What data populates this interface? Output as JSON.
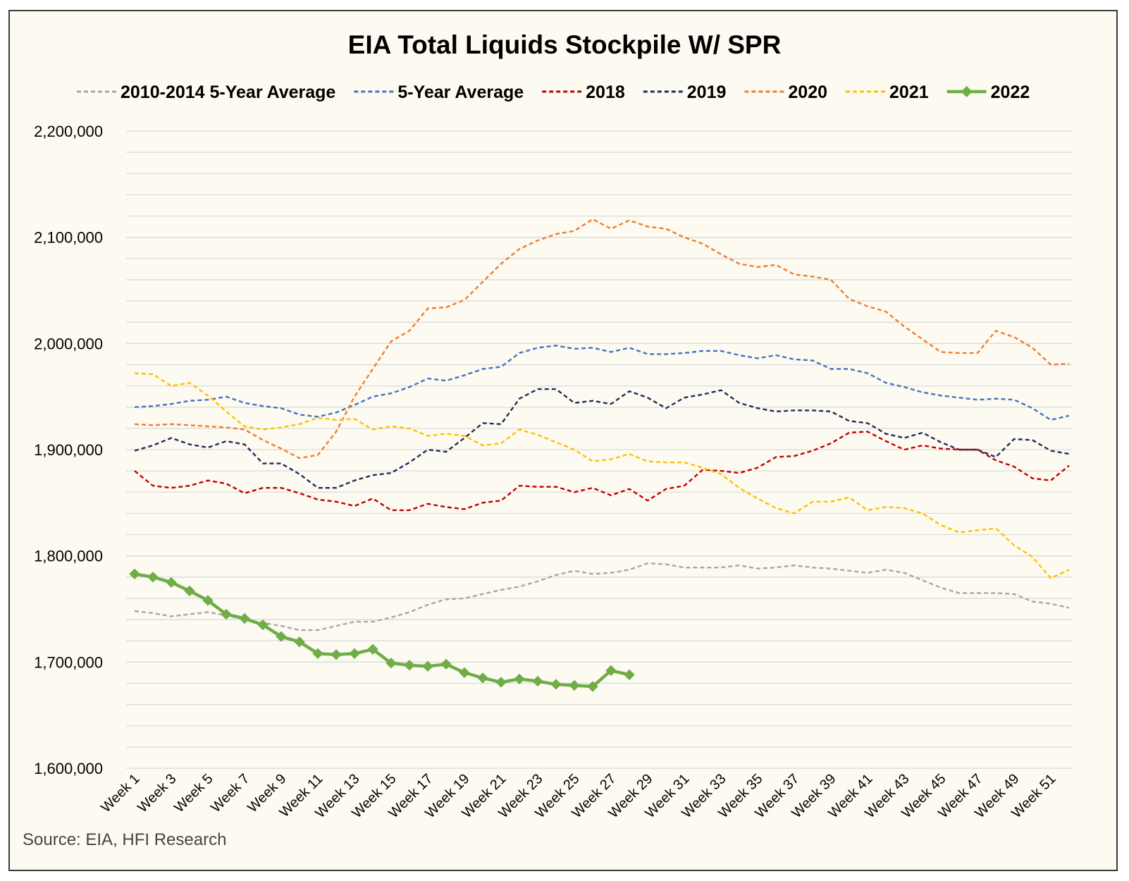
{
  "chart_data": {
    "type": "line",
    "title": "EIA Total Liquids Stockpile W/ SPR",
    "source": "Source: EIA, HFI Research",
    "xlabel": "",
    "ylabel": "",
    "ylim": [
      1600000,
      2200000
    ],
    "y_ticks": [
      "1,600,000",
      "1,700,000",
      "1,800,000",
      "1,900,000",
      "2,000,000",
      "2,100,000",
      "2,200,000"
    ],
    "y_tick_values": [
      1600000,
      1700000,
      1800000,
      1900000,
      2000000,
      2100000,
      2200000
    ],
    "x_tick_labels": [
      "Week 1",
      "Week 3",
      "Week 5",
      "Week 7",
      "Week 9",
      "Week 11",
      "Week 13",
      "Week 15",
      "Week 17",
      "Week 19",
      "Week 21",
      "Week 23",
      "Week 25",
      "Week 27",
      "Week 29",
      "Week 31",
      "Week 33",
      "Week 35",
      "Week 37",
      "Week 39",
      "Week 41",
      "Week 43",
      "Week 45",
      "Week 47",
      "Week 49",
      "Week 51"
    ],
    "x_tick_weeks": [
      1,
      3,
      5,
      7,
      9,
      11,
      13,
      15,
      17,
      19,
      21,
      23,
      25,
      27,
      29,
      31,
      33,
      35,
      37,
      39,
      41,
      43,
      45,
      47,
      49,
      51
    ],
    "grid": true,
    "legend_position": "top",
    "series": [
      {
        "name": "2010-2014 5-Year Average",
        "color": "#a6a6a6",
        "dashed": true,
        "values": [
          1748000,
          1746000,
          1743000,
          1745000,
          1747000,
          1744000,
          1740000,
          1737000,
          1734000,
          1730000,
          1730000,
          1734000,
          1738000,
          1738000,
          1742000,
          1747000,
          1754000,
          1759000,
          1760000,
          1764000,
          1768000,
          1771000,
          1776000,
          1782000,
          1786000,
          1783000,
          1784000,
          1787000,
          1793000,
          1792000,
          1789000,
          1789000,
          1789000,
          1791000,
          1788000,
          1789000,
          1791000,
          1789000,
          1788000,
          1786000,
          1784000,
          1787000,
          1784000,
          1777000,
          1770000,
          1765000,
          1765000,
          1765000,
          1764000,
          1757000,
          1755000,
          1751000
        ]
      },
      {
        "name": "5-Year Average",
        "color": "#4472c4",
        "dashed": true,
        "values": [
          1940000,
          1941000,
          1943000,
          1946000,
          1947000,
          1950000,
          1944000,
          1941000,
          1939000,
          1933000,
          1931000,
          1935000,
          1942000,
          1950000,
          1953000,
          1959000,
          1967000,
          1965000,
          1970000,
          1976000,
          1978000,
          1991000,
          1996000,
          1998000,
          1995000,
          1996000,
          1992000,
          1996000,
          1990000,
          1990000,
          1991000,
          1993000,
          1993000,
          1989000,
          1986000,
          1989000,
          1985000,
          1984000,
          1976000,
          1976000,
          1972000,
          1963000,
          1959000,
          1954000,
          1951000,
          1949000,
          1947000,
          1948000,
          1947000,
          1939000,
          1928000,
          1932000
        ]
      },
      {
        "name": "2018",
        "color": "#c00000",
        "dashed": true,
        "values": [
          1880000,
          1866000,
          1864000,
          1866000,
          1871000,
          1868000,
          1859000,
          1864000,
          1864000,
          1859000,
          1853000,
          1851000,
          1847000,
          1854000,
          1843000,
          1843000,
          1849000,
          1846000,
          1844000,
          1850000,
          1852000,
          1866000,
          1865000,
          1865000,
          1860000,
          1864000,
          1857000,
          1863000,
          1852000,
          1863000,
          1866000,
          1881000,
          1880000,
          1878000,
          1883000,
          1893000,
          1894000,
          1899000,
          1906000,
          1916000,
          1917000,
          1908000,
          1900000,
          1904000,
          1901000,
          1900000,
          1900000,
          1890000,
          1884000,
          1873000,
          1871000,
          1885000
        ]
      },
      {
        "name": "2019",
        "color": "#1f2d5c",
        "dashed": true,
        "values": [
          1899000,
          1904000,
          1911000,
          1905000,
          1902000,
          1908000,
          1905000,
          1887000,
          1887000,
          1877000,
          1864000,
          1864000,
          1871000,
          1876000,
          1878000,
          1888000,
          1900000,
          1898000,
          1911000,
          1925000,
          1924000,
          1948000,
          1957000,
          1957000,
          1944000,
          1946000,
          1943000,
          1955000,
          1949000,
          1939000,
          1949000,
          1952000,
          1956000,
          1944000,
          1939000,
          1936000,
          1937000,
          1937000,
          1936000,
          1927000,
          1925000,
          1915000,
          1911000,
          1916000,
          1907000,
          1900000,
          1900000,
          1893000,
          1910000,
          1909000,
          1899000,
          1896000
        ]
      },
      {
        "name": "2020",
        "color": "#ed7d31",
        "dashed": true,
        "values": [
          1924000,
          1923000,
          1924000,
          1923000,
          1922000,
          1921000,
          1919000,
          1909000,
          1901000,
          1892000,
          1895000,
          1917000,
          1950000,
          1976000,
          2002000,
          2012000,
          2033000,
          2034000,
          2041000,
          2058000,
          2075000,
          2089000,
          2097000,
          2103000,
          2106000,
          2117000,
          2108000,
          2116000,
          2110000,
          2108000,
          2100000,
          2094000,
          2084000,
          2075000,
          2072000,
          2074000,
          2065000,
          2063000,
          2060000,
          2042000,
          2035000,
          2030000,
          2016000,
          2004000,
          1992000,
          1991000,
          1991000,
          2012000,
          2006000,
          1996000,
          1980000,
          1981000
        ]
      },
      {
        "name": "2021",
        "color": "#ffc000",
        "dashed": true,
        "values": [
          1972000,
          1971000,
          1960000,
          1963000,
          1951000,
          1936000,
          1922000,
          1919000,
          1921000,
          1924000,
          1930000,
          1928000,
          1929000,
          1919000,
          1922000,
          1920000,
          1913000,
          1915000,
          1913000,
          1904000,
          1906000,
          1919000,
          1914000,
          1907000,
          1900000,
          1889000,
          1891000,
          1896000,
          1889000,
          1888000,
          1888000,
          1883000,
          1877000,
          1864000,
          1854000,
          1845000,
          1840000,
          1851000,
          1851000,
          1855000,
          1843000,
          1846000,
          1845000,
          1840000,
          1829000,
          1822000,
          1824000,
          1826000,
          1810000,
          1799000,
          1779000,
          1787000
        ]
      },
      {
        "name": "2022",
        "color": "#70ad47",
        "dashed": false,
        "markers": true,
        "values": [
          1783000,
          1780000,
          1775000,
          1767000,
          1758000,
          1745000,
          1741000,
          1735000,
          1724000,
          1719000,
          1708000,
          1707000,
          1708000,
          1712000,
          1699000,
          1697000,
          1696000,
          1698000,
          1690000,
          1685000,
          1681000,
          1684000,
          1682000,
          1679000,
          1678000,
          1677000,
          1692000,
          1688000
        ]
      }
    ]
  }
}
